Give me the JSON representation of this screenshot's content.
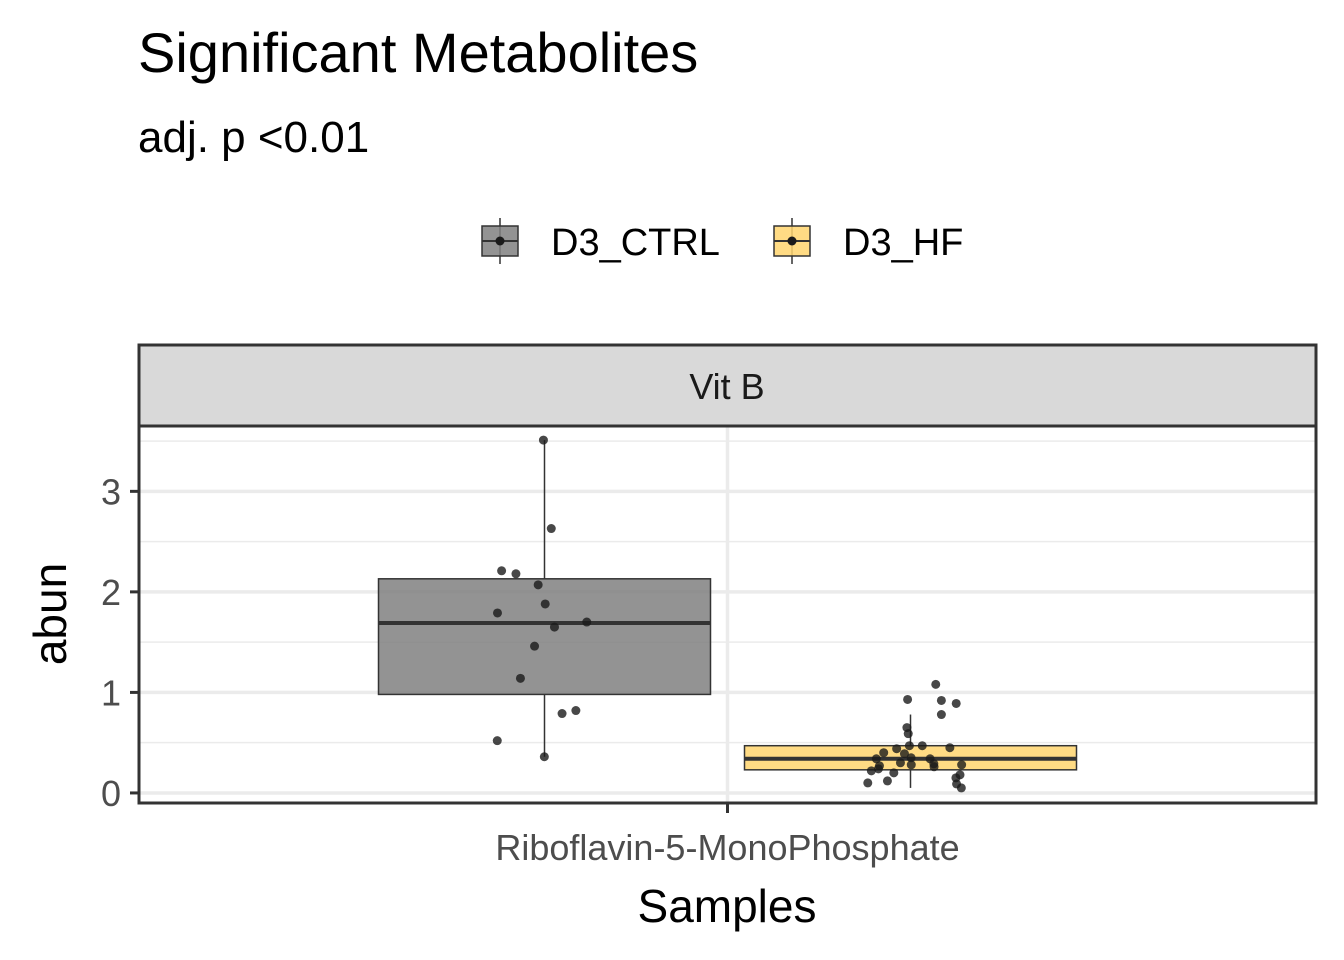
{
  "chart_data": {
    "type": "box",
    "title": "Significant Metabolites",
    "subtitle": "adj. p <0.01",
    "facet": "Vit B",
    "xlabel": "Samples",
    "ylabel": "abun",
    "categories": [
      "Riboflavin-5-MonoPhosphate"
    ],
    "ylim": [
      -0.1,
      3.65
    ],
    "yticks": [
      0,
      1,
      2,
      3
    ],
    "grid": true,
    "legend_position": "top",
    "series": [
      {
        "name": "D3_CTRL",
        "color": "#808080",
        "q1": 0.98,
        "median": 1.69,
        "q3": 2.13,
        "whisker_low": 0.36,
        "whisker_high": 3.51,
        "points": [
          3.51,
          2.63,
          2.21,
          2.18,
          2.07,
          1.88,
          1.79,
          1.7,
          1.65,
          1.46,
          1.14,
          0.82,
          0.79,
          0.52,
          0.36
        ]
      },
      {
        "name": "D3_HF",
        "color": "#FFD56E",
        "q1": 0.23,
        "median": 0.34,
        "q3": 0.47,
        "whisker_low": 0.05,
        "whisker_high": 0.78,
        "points": [
          1.08,
          0.93,
          0.92,
          0.89,
          0.78,
          0.65,
          0.59,
          0.47,
          0.47,
          0.45,
          0.44,
          0.4,
          0.39,
          0.35,
          0.34,
          0.34,
          0.3,
          0.29,
          0.28,
          0.28,
          0.27,
          0.26,
          0.24,
          0.22,
          0.2,
          0.18,
          0.15,
          0.12,
          0.1,
          0.09,
          0.05
        ]
      }
    ]
  }
}
